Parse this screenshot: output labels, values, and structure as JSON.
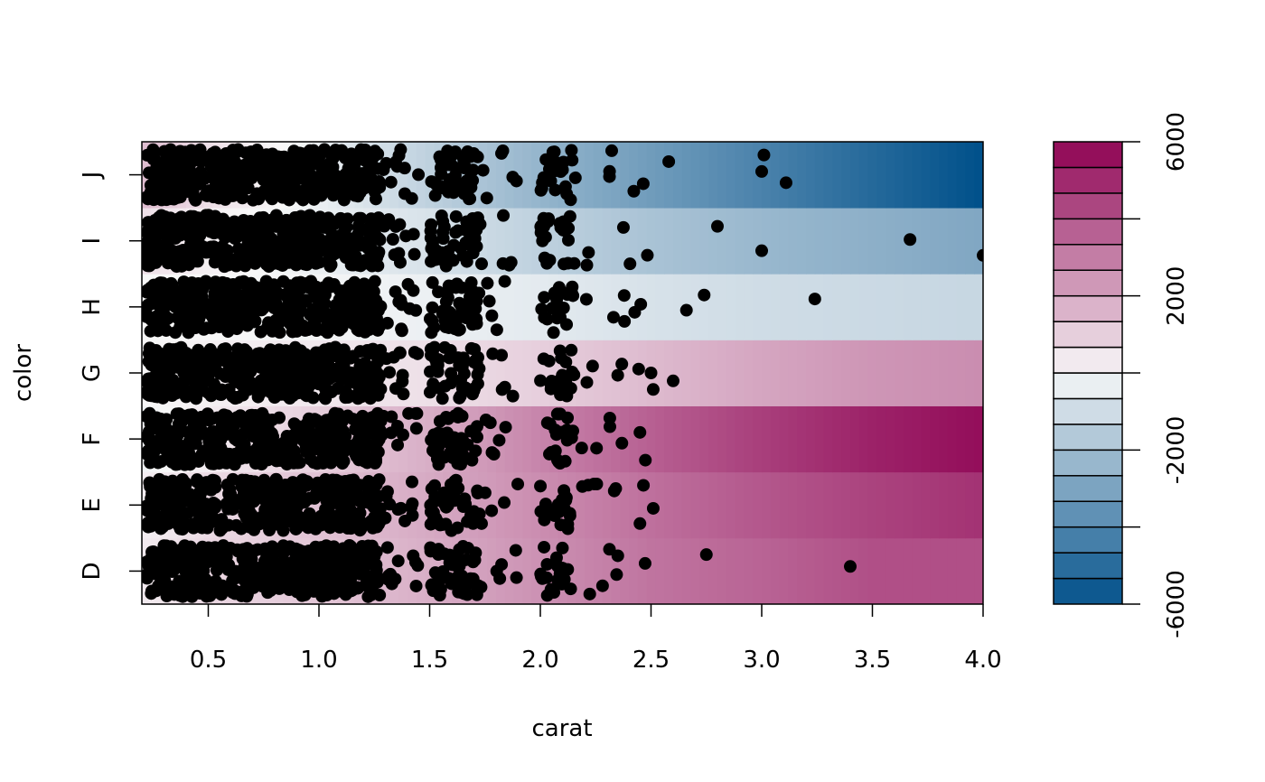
{
  "chart_data": {
    "type": "heatmap",
    "xlabel": "carat",
    "ylabel": "color",
    "xlim": [
      0.2,
      4.0
    ],
    "x_ticks": [
      0.5,
      1.0,
      1.5,
      2.0,
      2.5,
      3.0,
      3.5,
      4.0
    ],
    "x_tick_labels": [
      "0.5",
      "1.0",
      "1.5",
      "2.0",
      "2.5",
      "3.0",
      "3.5",
      "4.0"
    ],
    "categories": [
      "D",
      "E",
      "F",
      "G",
      "H",
      "I",
      "J"
    ],
    "color_scale": {
      "min": -6000,
      "max": 6000,
      "breaks": 18,
      "ticks": [
        -6000,
        -2000,
        2000,
        6000
      ],
      "tick_labels": [
        "-6000",
        "-2000",
        "2000",
        "6000"
      ],
      "low_color": "#00508A",
      "mid_color": "#F8F8F8",
      "high_color": "#8E0152"
    },
    "rows": [
      {
        "category": "D",
        "segments": [
          [
            0.2,
            300
          ],
          [
            0.5,
            800
          ],
          [
            1.0,
            1200
          ],
          [
            1.5,
            1800
          ],
          [
            2.0,
            2500
          ],
          [
            2.5,
            3200
          ],
          [
            3.0,
            3600
          ],
          [
            3.5,
            4100
          ],
          [
            4.0,
            4100
          ]
        ]
      },
      {
        "category": "E",
        "segments": [
          [
            0.2,
            200
          ],
          [
            0.5,
            700
          ],
          [
            1.0,
            1300
          ],
          [
            1.5,
            1900
          ],
          [
            2.0,
            2600
          ],
          [
            2.5,
            3300
          ],
          [
            3.0,
            3900
          ],
          [
            3.5,
            4400
          ],
          [
            4.0,
            4800
          ]
        ]
      },
      {
        "category": "F",
        "segments": [
          [
            0.2,
            -200
          ],
          [
            0.5,
            300
          ],
          [
            1.0,
            1000
          ],
          [
            1.5,
            1800
          ],
          [
            2.0,
            2800
          ],
          [
            2.5,
            3700
          ],
          [
            3.0,
            4500
          ],
          [
            3.5,
            5200
          ],
          [
            4.0,
            5700
          ]
        ]
      },
      {
        "category": "G",
        "segments": [
          [
            0.2,
            0
          ],
          [
            0.5,
            200
          ],
          [
            1.0,
            400
          ],
          [
            1.5,
            600
          ],
          [
            2.0,
            1000
          ],
          [
            2.5,
            1500
          ],
          [
            3.0,
            2000
          ],
          [
            3.5,
            2400
          ],
          [
            4.0,
            2600
          ]
        ]
      },
      {
        "category": "H",
        "segments": [
          [
            0.2,
            0
          ],
          [
            0.5,
            0
          ],
          [
            1.0,
            -100
          ],
          [
            1.5,
            -300
          ],
          [
            2.0,
            -500
          ],
          [
            2.5,
            -800
          ],
          [
            3.0,
            -1000
          ],
          [
            3.5,
            -1100
          ],
          [
            4.0,
            -1200
          ]
        ]
      },
      {
        "category": "I",
        "segments": [
          [
            0.2,
            600
          ],
          [
            0.5,
            200
          ],
          [
            1.0,
            -300
          ],
          [
            1.5,
            -800
          ],
          [
            2.0,
            -1400
          ],
          [
            2.5,
            -1900
          ],
          [
            3.0,
            -2300
          ],
          [
            3.5,
            -2600
          ],
          [
            4.0,
            -2900
          ]
        ]
      },
      {
        "category": "J",
        "segments": [
          [
            0.2,
            1500
          ],
          [
            0.5,
            600
          ],
          [
            1.0,
            -300
          ],
          [
            1.5,
            -1400
          ],
          [
            2.0,
            -2400
          ],
          [
            2.5,
            -3300
          ],
          [
            3.0,
            -4200
          ],
          [
            3.5,
            -5100
          ],
          [
            4.0,
            -6000
          ]
        ]
      }
    ],
    "points": {
      "dense_bands": [
        {
          "from": 0.22,
          "to": 0.48,
          "density": 1.0
        },
        {
          "from": 0.48,
          "to": 0.75,
          "density": 0.8
        },
        {
          "from": 0.75,
          "to": 1.28,
          "density": 0.95
        },
        {
          "from": 1.28,
          "to": 1.45,
          "density": 0.15
        },
        {
          "from": 1.5,
          "to": 1.72,
          "density": 0.5
        },
        {
          "from": 1.72,
          "to": 1.9,
          "density": 0.08
        },
        {
          "from": 2.0,
          "to": 2.15,
          "density": 0.35
        },
        {
          "from": 2.15,
          "to": 2.5,
          "density": 0.04
        }
      ],
      "outliers": [
        {
          "category": "J",
          "x": 2.58,
          "offset": 0.2
        },
        {
          "category": "J",
          "x": 3.01,
          "offset": 0.3
        },
        {
          "category": "J",
          "x": 3.0,
          "offset": 0.05
        },
        {
          "category": "J",
          "x": 3.11,
          "offset": -0.12
        },
        {
          "category": "I",
          "x": 2.8,
          "offset": 0.22
        },
        {
          "category": "I",
          "x": 3.0,
          "offset": -0.15
        },
        {
          "category": "I",
          "x": 3.67,
          "offset": 0.02
        },
        {
          "category": "I",
          "x": 4.0,
          "offset": -0.22
        },
        {
          "category": "H",
          "x": 2.66,
          "offset": -0.05
        },
        {
          "category": "H",
          "x": 2.74,
          "offset": 0.18
        },
        {
          "category": "H",
          "x": 3.24,
          "offset": 0.12
        },
        {
          "category": "G",
          "x": 2.5,
          "offset": 0.0
        },
        {
          "category": "G",
          "x": 2.51,
          "offset": -0.25
        },
        {
          "category": "G",
          "x": 2.6,
          "offset": -0.12
        },
        {
          "category": "F",
          "x": 2.45,
          "offset": 0.1
        },
        {
          "category": "E",
          "x": 2.19,
          "offset": 0.28
        },
        {
          "category": "E",
          "x": 2.45,
          "offset": -0.28
        },
        {
          "category": "E",
          "x": 2.51,
          "offset": -0.05
        },
        {
          "category": "D",
          "x": 2.75,
          "offset": 0.25
        },
        {
          "category": "D",
          "x": 3.4,
          "offset": 0.07
        }
      ]
    }
  }
}
